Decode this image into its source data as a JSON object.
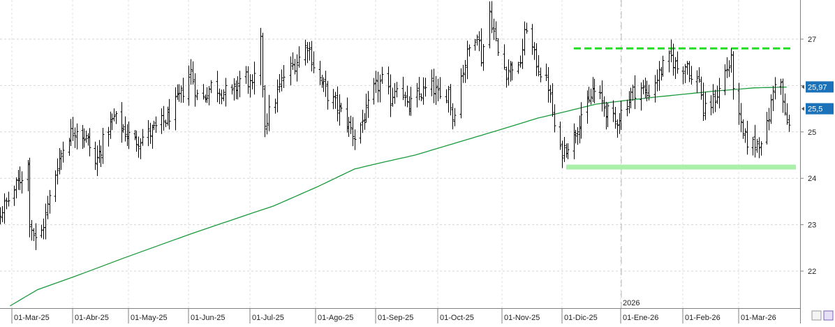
{
  "chart_data": {
    "type": "ohlc",
    "title": "",
    "xlabel": "",
    "ylabel": "",
    "y_axis_position": "right",
    "ylim": [
      21.2,
      27.8
    ],
    "y_ticks": [
      22,
      23,
      24,
      25,
      26,
      27
    ],
    "y_tick_labels": [
      "22",
      "23",
      "24",
      "25",
      "26",
      "27"
    ],
    "grid": true,
    "x_tick_labels": [
      "01-Mar-25",
      "01-Abr-25",
      "01-May-25",
      "01-Jun-25",
      "01-Jul-25",
      "01-Ago-25",
      "01-Sep-25",
      "01-Oct-25",
      "01-Nov-25",
      "01-Dic-25",
      "01-Ene-26",
      "01-Feb-26",
      "01-Mar-26"
    ],
    "year_marker": {
      "label": "2026",
      "at_month_index": 10
    },
    "price_series": {
      "color": "#000000",
      "monthly_close_approx": [
        {
          "month": "Feb-25",
          "close": 23.7
        },
        {
          "month": "Mar-25",
          "close": 23.4
        },
        {
          "month": "Abr-25",
          "close": 24.3
        },
        {
          "month": "May-25",
          "close": 24.9
        },
        {
          "month": "Jun-25",
          "close": 25.1
        },
        {
          "month": "Jul-25",
          "close": 26.0
        },
        {
          "month": "Ago-25",
          "close": 26.4
        },
        {
          "month": "Sep-25",
          "close": 25.3
        },
        {
          "month": "Oct-25",
          "close": 25.8
        },
        {
          "month": "Nov-25",
          "close": 26.5
        },
        {
          "month": "Dic-25",
          "close": 25.3
        },
        {
          "month": "Ene-26",
          "close": 26.2
        },
        {
          "month": "Feb-26",
          "close": 25.3
        },
        {
          "month": "Mar-26",
          "close": 25.5
        }
      ],
      "anchors": [
        {
          "d": 0,
          "v": 23.9
        },
        {
          "d": 8,
          "v": 23.4
        },
        {
          "d": 14,
          "v": 23.0
        },
        {
          "d": 20,
          "v": 23.2
        },
        {
          "d": 26,
          "v": 23.6
        },
        {
          "d": 30,
          "v": 23.9
        },
        {
          "d": 35,
          "v": 24.3
        },
        {
          "d": 36,
          "v": 23.1
        },
        {
          "d": 40,
          "v": 22.5
        },
        {
          "d": 44,
          "v": 23.2
        },
        {
          "d": 50,
          "v": 24.3
        },
        {
          "d": 55,
          "v": 24.9
        },
        {
          "d": 60,
          "v": 25.1
        },
        {
          "d": 66,
          "v": 24.8
        },
        {
          "d": 70,
          "v": 24.3
        },
        {
          "d": 75,
          "v": 24.9
        },
        {
          "d": 80,
          "v": 25.3
        },
        {
          "d": 86,
          "v": 25.0
        },
        {
          "d": 91,
          "v": 24.8
        },
        {
          "d": 100,
          "v": 25.0
        },
        {
          "d": 108,
          "v": 25.3
        },
        {
          "d": 115,
          "v": 25.8
        },
        {
          "d": 120,
          "v": 26.3
        },
        {
          "d": 124,
          "v": 25.6
        },
        {
          "d": 130,
          "v": 26.0
        },
        {
          "d": 135,
          "v": 25.9
        },
        {
          "d": 140,
          "v": 25.8
        },
        {
          "d": 146,
          "v": 26.3
        },
        {
          "d": 150,
          "v": 25.9
        },
        {
          "d": 154,
          "v": 26.9
        },
        {
          "d": 156,
          "v": 25.2
        },
        {
          "d": 160,
          "v": 25.6
        },
        {
          "d": 165,
          "v": 26.2
        },
        {
          "d": 172,
          "v": 26.6
        },
        {
          "d": 176,
          "v": 26.9
        },
        {
          "d": 180,
          "v": 26.3
        },
        {
          "d": 186,
          "v": 25.8
        },
        {
          "d": 190,
          "v": 25.6
        },
        {
          "d": 195,
          "v": 25.3
        },
        {
          "d": 200,
          "v": 24.9
        },
        {
          "d": 206,
          "v": 25.4
        },
        {
          "d": 210,
          "v": 25.9
        },
        {
          "d": 214,
          "v": 26.1
        },
        {
          "d": 218,
          "v": 25.7
        },
        {
          "d": 222,
          "v": 26.2
        },
        {
          "d": 226,
          "v": 25.5
        },
        {
          "d": 232,
          "v": 25.8
        },
        {
          "d": 238,
          "v": 26.0
        },
        {
          "d": 242,
          "v": 25.7
        },
        {
          "d": 246,
          "v": 25.9
        },
        {
          "d": 248,
          "v": 25.3
        },
        {
          "d": 252,
          "v": 26.2
        },
        {
          "d": 256,
          "v": 26.8
        },
        {
          "d": 260,
          "v": 27.2
        },
        {
          "d": 262,
          "v": 26.6
        },
        {
          "d": 266,
          "v": 27.6
        },
        {
          "d": 270,
          "v": 26.7
        },
        {
          "d": 274,
          "v": 26.3
        },
        {
          "d": 278,
          "v": 26.5
        },
        {
          "d": 280,
          "v": 26.3
        },
        {
          "d": 284,
          "v": 27.3
        },
        {
          "d": 288,
          "v": 26.6
        },
        {
          "d": 292,
          "v": 26.2
        },
        {
          "d": 295,
          "v": 26.0
        },
        {
          "d": 300,
          "v": 24.5
        },
        {
          "d": 304,
          "v": 24.7
        },
        {
          "d": 308,
          "v": 24.9
        },
        {
          "d": 312,
          "v": 25.4
        },
        {
          "d": 316,
          "v": 25.6
        },
        {
          "d": 318,
          "v": 25.9
        },
        {
          "d": 322,
          "v": 25.7
        },
        {
          "d": 326,
          "v": 25.4
        },
        {
          "d": 330,
          "v": 25.2
        },
        {
          "d": 334,
          "v": 25.5
        },
        {
          "d": 338,
          "v": 25.8
        },
        {
          "d": 342,
          "v": 26.0
        },
        {
          "d": 346,
          "v": 25.8
        },
        {
          "d": 350,
          "v": 26.1
        },
        {
          "d": 354,
          "v": 26.4
        },
        {
          "d": 358,
          "v": 26.6
        },
        {
          "d": 362,
          "v": 26.3
        },
        {
          "d": 366,
          "v": 26.5
        },
        {
          "d": 369,
          "v": 25.9
        },
        {
          "d": 372,
          "v": 26.2
        },
        {
          "d": 374,
          "v": 25.4
        },
        {
          "d": 378,
          "v": 25.6
        },
        {
          "d": 382,
          "v": 25.9
        },
        {
          "d": 385,
          "v": 26.3
        },
        {
          "d": 388,
          "v": 26.5
        },
        {
          "d": 390,
          "v": 25.6
        },
        {
          "d": 394,
          "v": 24.9
        },
        {
          "d": 398,
          "v": 24.7
        },
        {
          "d": 402,
          "v": 24.8
        },
        {
          "d": 406,
          "v": 25.1
        },
        {
          "d": 408,
          "v": 25.6
        },
        {
          "d": 411,
          "v": 26.4
        },
        {
          "d": 413,
          "v": 26.0
        },
        {
          "d": 415,
          "v": 25.3
        },
        {
          "d": 417,
          "v": 25.1
        },
        {
          "d": 419,
          "v": 25.3
        }
      ]
    },
    "moving_average": {
      "color": "#1a9a3c",
      "points": [
        {
          "d": 0,
          "v": 20.6
        },
        {
          "d": 40,
          "v": 21.6
        },
        {
          "d": 80,
          "v": 22.2
        },
        {
          "d": 120,
          "v": 22.8
        },
        {
          "d": 160,
          "v": 23.4
        },
        {
          "d": 200,
          "v": 24.2
        },
        {
          "d": 230,
          "v": 24.5
        },
        {
          "d": 260,
          "v": 24.9
        },
        {
          "d": 290,
          "v": 25.3
        },
        {
          "d": 320,
          "v": 25.6
        },
        {
          "d": 350,
          "v": 25.75
        },
        {
          "d": 380,
          "v": 25.88
        },
        {
          "d": 400,
          "v": 25.95
        },
        {
          "d": 419,
          "v": 25.97
        }
      ]
    },
    "resistance_line": {
      "value": 26.8,
      "color": "#22dd22",
      "style": "dashed",
      "from_month_index": 9,
      "to_month_index": 13
    },
    "support_zone": {
      "value": 24.25,
      "color": "#aaf0aa",
      "from_month_index": 9,
      "to_month_index": 13
    },
    "price_tags": [
      {
        "label": "25,97",
        "value": 25.97,
        "color": "#1b72b8"
      },
      {
        "label": "25,5",
        "value": 25.5,
        "color": "#1b72b8"
      }
    ]
  }
}
